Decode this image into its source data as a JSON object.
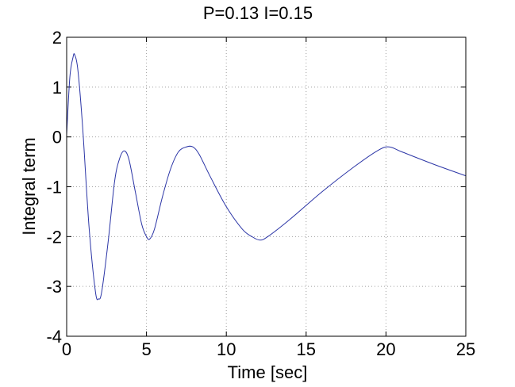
{
  "chart_data": {
    "type": "line",
    "title": "P=0.13 I=0.15",
    "xlabel": "Time [sec]",
    "ylabel": "Integral term",
    "xlim": [
      0,
      25
    ],
    "ylim": [
      -4,
      2
    ],
    "xticks": [
      0,
      5,
      10,
      15,
      20,
      25
    ],
    "yticks": [
      -4,
      -3,
      -2,
      -1,
      0,
      1,
      2
    ],
    "xtick_labels": [
      "0",
      "5",
      "10",
      "15",
      "20",
      "25"
    ],
    "ytick_labels": [
      "-4",
      "-3",
      "-2",
      "-1",
      "0",
      "1",
      "2"
    ],
    "grid": true,
    "grid_style": "dotted",
    "series": [
      {
        "color": "#2b35a6",
        "x": [
          0,
          0.2,
          0.4,
          0.5,
          0.7,
          1.0,
          1.4,
          1.8,
          2.0,
          2.2,
          2.6,
          3.0,
          3.3,
          3.6,
          3.9,
          4.3,
          4.7,
          5.0,
          5.2,
          5.5,
          6.0,
          6.5,
          7.0,
          7.5,
          7.9,
          8.3,
          9.0,
          10.0,
          11.0,
          11.6,
          12.1,
          12.6,
          14.0,
          16.0,
          18.0,
          19.5,
          20.2,
          21.0,
          23.0,
          25.0
        ],
        "y": [
          0.05,
          1.2,
          1.6,
          1.65,
          1.35,
          0.2,
          -1.8,
          -3.1,
          -3.25,
          -3.1,
          -2.1,
          -0.9,
          -0.45,
          -0.28,
          -0.45,
          -1.1,
          -1.75,
          -2.0,
          -2.05,
          -1.85,
          -1.2,
          -0.65,
          -0.3,
          -0.2,
          -0.2,
          -0.35,
          -0.8,
          -1.4,
          -1.85,
          -2.0,
          -2.07,
          -2.0,
          -1.65,
          -1.1,
          -0.6,
          -0.27,
          -0.2,
          -0.3,
          -0.55,
          -0.78
        ]
      }
    ]
  }
}
